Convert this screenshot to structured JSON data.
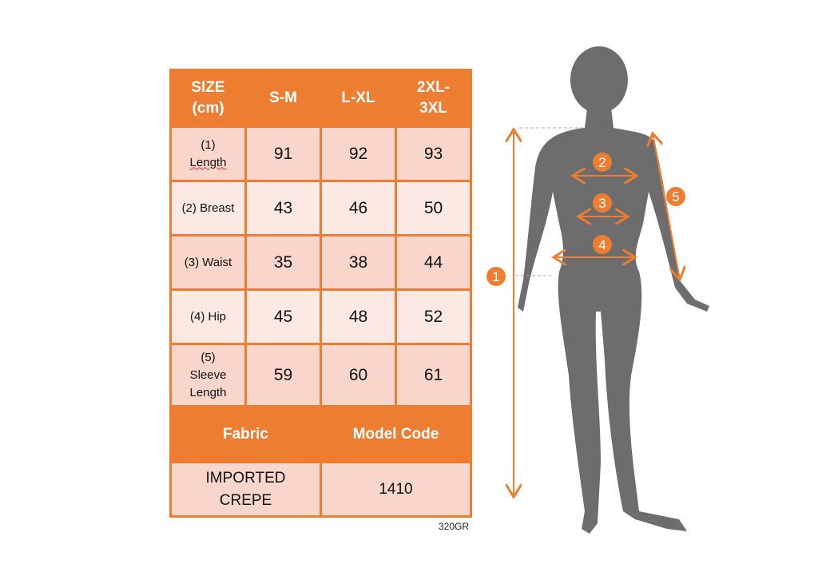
{
  "table": {
    "header": [
      "SIZE (cm)",
      "S-M",
      "L-XL",
      "2XL-3XL"
    ],
    "header_lines": [
      [
        "SIZE",
        "(cm)"
      ],
      [
        "S-M"
      ],
      [
        "L-XL"
      ],
      [
        "2XL-",
        "3XL"
      ]
    ],
    "rows": [
      {
        "label_lines": [
          "(1)",
          "Length"
        ],
        "values": [
          "91",
          "92",
          "93"
        ]
      },
      {
        "label_lines": [
          "(2) Breast"
        ],
        "values": [
          "43",
          "46",
          "50"
        ]
      },
      {
        "label_lines": [
          "(3) Waist"
        ],
        "values": [
          "35",
          "38",
          "44"
        ]
      },
      {
        "label_lines": [
          "(4) Hip"
        ],
        "values": [
          "45",
          "48",
          "52"
        ]
      },
      {
        "label_lines": [
          "(5)",
          "Sleeve",
          "Length"
        ],
        "values": [
          "59",
          "60",
          "61"
        ]
      }
    ],
    "footer_header": [
      "Fabric",
      "Model Code"
    ],
    "fabric_lines": [
      "IMPORTED",
      "CREPE"
    ],
    "model_code": "1410"
  },
  "weight_code": "320GR",
  "figure": {
    "markers": [
      "1",
      "2",
      "3",
      "4",
      "5"
    ],
    "accent": "#ed7d31",
    "silhouette": "#6d6d6d"
  }
}
